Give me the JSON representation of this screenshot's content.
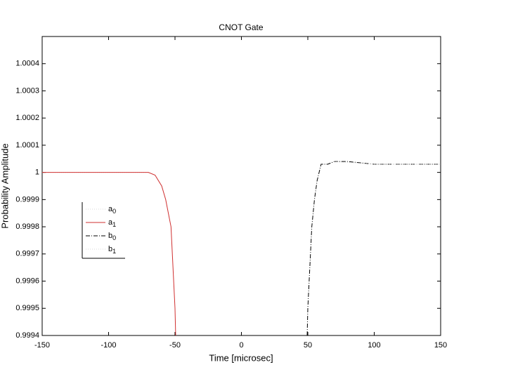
{
  "chart_data": {
    "type": "line",
    "title": "CNOT Gate",
    "xlabel": "Time [microsec]",
    "ylabel": "Probability Amplitude",
    "xlim": [
      -150,
      150
    ],
    "xticks": [
      -150,
      -100,
      -50,
      0,
      50,
      100,
      150
    ],
    "ylim": [
      0.9994,
      1.0005
    ],
    "yticks": [
      0.9994,
      0.9995,
      0.9996,
      0.9997,
      0.9998,
      0.9999,
      1,
      1.0001,
      1.0002,
      1.0003,
      1.0004
    ],
    "series": [
      {
        "name": "a0",
        "color": "#d8d8d8",
        "linestyle": "dotted",
        "x": [
          -150,
          -70,
          -65,
          -60,
          -57
        ],
        "values": [
          1,
          1,
          0.99999,
          0.99995,
          0.9999
        ]
      },
      {
        "name": "a1",
        "color": "#d03030",
        "linestyle": "solid",
        "x": [
          -150,
          -70,
          -65,
          -60,
          -57,
          -55,
          -53,
          -52,
          -51,
          -50,
          -49.5
        ],
        "values": [
          1,
          1,
          0.99999,
          0.99995,
          0.9999,
          0.99985,
          0.9998,
          0.9997,
          0.9996,
          0.9995,
          0.9994
        ]
      },
      {
        "name": "b0",
        "color": "#000000",
        "linestyle": "dashdot",
        "x": [
          49.5,
          50,
          51,
          52,
          53,
          54,
          55,
          57,
          60,
          65,
          70,
          80,
          100,
          150
        ],
        "values": [
          0.9994,
          0.9995,
          0.9996,
          0.9997,
          0.9998,
          0.99985,
          0.9999,
          0.99997,
          1.00003,
          1.00003,
          1.00004,
          1.00004,
          1.00003,
          1.00003
        ]
      },
      {
        "name": "b1",
        "color": "#d8d8d8",
        "linestyle": "dotted",
        "x": [
          70,
          100,
          150
        ],
        "values": [
          1.00004,
          1.00003,
          1.00003
        ]
      }
    ]
  }
}
